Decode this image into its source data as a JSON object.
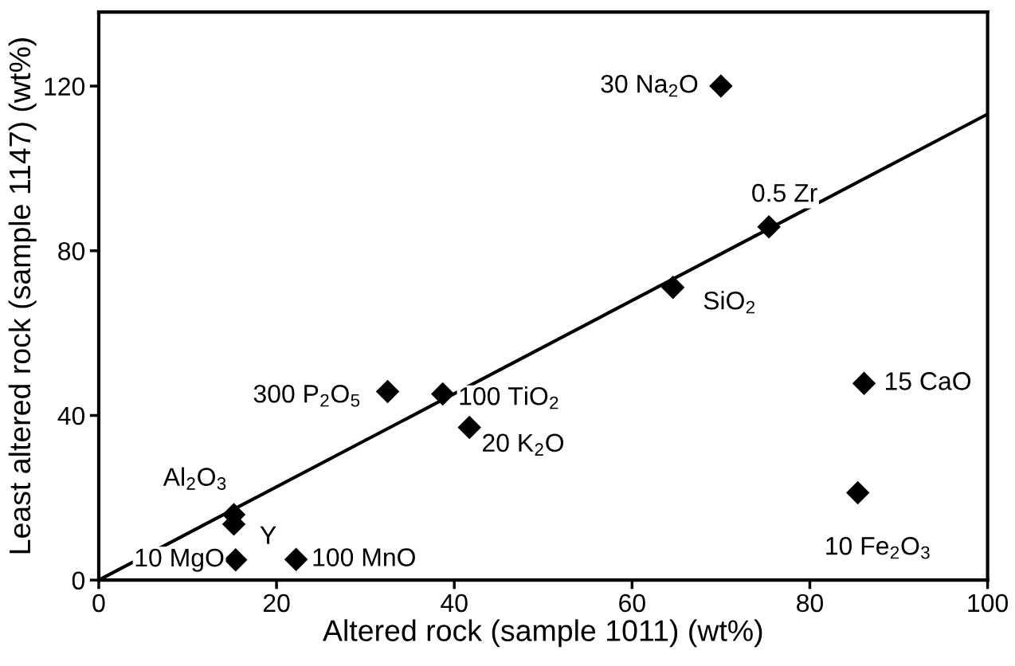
{
  "chart_data": {
    "type": "scatter",
    "xlabel": "Altered rock (sample 1011) (wt%)",
    "ylabel": "Least altered rock (sample 1147) (wt%)",
    "xlim": [
      0,
      100
    ],
    "xticks": [
      0,
      20,
      40,
      60,
      80,
      100
    ],
    "ylim": [
      0,
      138
    ],
    "yticks": [
      0,
      40,
      80,
      120
    ],
    "grid": false,
    "legend": false,
    "marker": "diamond",
    "series": [
      {
        "color": "#000000",
        "x": [
          70.0,
          75.4,
          64.6,
          32.5,
          38.7,
          41.7,
          86.1,
          85.4,
          15.2,
          15.2,
          15.4,
          22.2
        ],
        "values": [
          120,
          85.8,
          71.1,
          45.8,
          45.2,
          37.1,
          47.8,
          21.2,
          15.9,
          13.6,
          4.9,
          5.0
        ]
      },
      {
        "type": "line",
        "color": "#000000",
        "line_style": "solid",
        "marker": "none",
        "x": [
          0,
          100
        ],
        "values": [
          0,
          113.2
        ]
      }
    ],
    "annotations": [
      {
        "text": "30 Na$_{2}$O",
        "x": 70.0,
        "y": 120
      },
      {
        "text": "0.5 Zr",
        "x": 75.4,
        "y": 85.8
      },
      {
        "text": "SiO$_{2}$",
        "x": 64.6,
        "y": 71.1
      },
      {
        "text": "300 P$_{2}$O$_{5}$",
        "x": 32.5,
        "y": 45.8
      },
      {
        "text": "100 TiO$_{2}$",
        "x": 38.7,
        "y": 45.2
      },
      {
        "text": "20 K$_{2}$O",
        "x": 41.7,
        "y": 37.1
      },
      {
        "text": "15 CaO",
        "x": 86.1,
        "y": 47.8
      },
      {
        "text": "10 Fe$_{2}$O$_{3}$",
        "x": 85.4,
        "y": 21.2
      },
      {
        "text": "Al$_{2}$O$_{3}$",
        "x": 15.2,
        "y": 15.9
      },
      {
        "text": "Y",
        "x": 15.2,
        "y": 13.6
      },
      {
        "text": "10 MgO",
        "x": 15.4,
        "y": 4.9
      },
      {
        "text": "100 MnO",
        "x": 22.2,
        "y": 5.0
      }
    ]
  }
}
